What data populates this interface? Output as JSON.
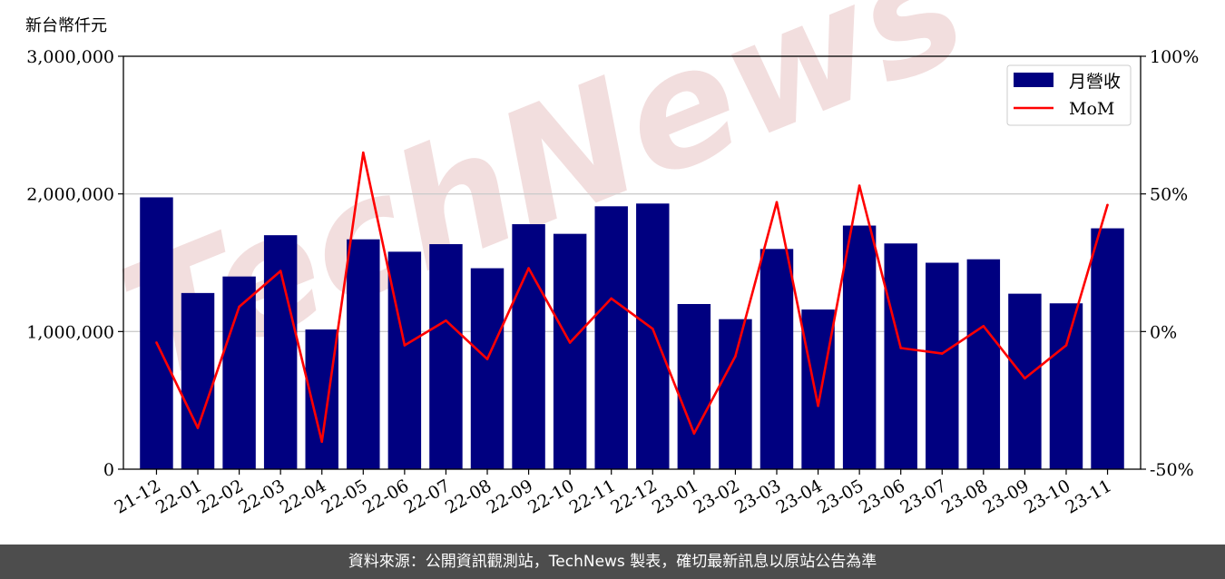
{
  "unit_label": "新台幣仟元",
  "watermark": "TechNews",
  "footer": {
    "source_text": "資料來源：公開資訊觀測站，TechNews 製表，確切最新訊息以原站公告為準"
  },
  "colors": {
    "bar": "#000080",
    "line": "#ff0000",
    "grid": "#cccccc",
    "watermark": "#f2dede"
  },
  "chart_data": {
    "type": "bar",
    "categories": [
      "21-12",
      "22-01",
      "22-02",
      "22-03",
      "22-04",
      "22-05",
      "22-06",
      "22-07",
      "22-08",
      "22-09",
      "22-10",
      "22-11",
      "22-12",
      "23-01",
      "23-02",
      "23-03",
      "23-04",
      "23-05",
      "23-06",
      "23-07",
      "23-08",
      "23-09",
      "23-10",
      "23-11"
    ],
    "series": [
      {
        "name": "月營收",
        "kind": "bar",
        "axis": "left",
        "values": [
          1975000,
          1280000,
          1400000,
          1700000,
          1015000,
          1670000,
          1580000,
          1635000,
          1460000,
          1780000,
          1710000,
          1910000,
          1930000,
          1200000,
          1090000,
          1600000,
          1160000,
          1770000,
          1640000,
          1500000,
          1525000,
          1275000,
          1205000,
          1750000
        ]
      },
      {
        "name": "MoM",
        "kind": "line",
        "axis": "right",
        "values": [
          -4,
          -35,
          9,
          22,
          -40,
          65,
          -5,
          4,
          -10,
          23,
          -4,
          12,
          1,
          -37,
          -9,
          47,
          -27,
          53,
          -6,
          -8,
          2,
          -17,
          -5,
          46
        ]
      }
    ],
    "y_left": {
      "lim": [
        0,
        3000000
      ],
      "ticks": [
        "0",
        "1,000,000",
        "2,000,000",
        "3,000,000"
      ],
      "tick_values": [
        0,
        1000000,
        2000000,
        3000000
      ]
    },
    "y_right": {
      "lim": [
        -50,
        100
      ],
      "ticks": [
        "-50%",
        "0%",
        "50%",
        "100%"
      ],
      "tick_values": [
        -50,
        0,
        50,
        100
      ]
    },
    "grid": "horizontal",
    "legend": {
      "placement": "top-right",
      "entries": [
        "月營收",
        "MoM"
      ]
    }
  }
}
